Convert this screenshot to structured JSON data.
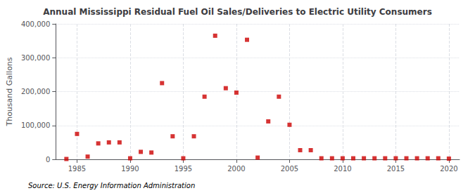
{
  "chart_data": {
    "type": "scatter",
    "title": "Annual Mississippi Residual Fuel Oil Sales/Deliveries to Electric Utility Consumers",
    "ylabel": "Thousand Gallons",
    "annotations": [
      "Source: U.S. Energy Information Administration"
    ],
    "x": [
      1984,
      1985,
      1986,
      1987,
      1988,
      1989,
      1990,
      1991,
      1992,
      1993,
      1994,
      1995,
      1996,
      1997,
      1998,
      1999,
      2000,
      2001,
      2002,
      2003,
      2004,
      2005,
      2006,
      2007,
      2008,
      2009,
      2010,
      2011,
      2012,
      2013,
      2014,
      2015,
      2016,
      2017,
      2018,
      2019,
      2020
    ],
    "values": [
      1000,
      75000,
      8000,
      47000,
      50000,
      50000,
      3000,
      22000,
      20000,
      225000,
      68000,
      3000,
      68000,
      185000,
      365000,
      210000,
      197000,
      353000,
      5000,
      112000,
      185000,
      102000,
      27000,
      27000,
      3000,
      3000,
      3000,
      3000,
      3000,
      3000,
      3000,
      3000,
      3000,
      3000,
      3000,
      3000,
      2000
    ],
    "color": "#cc0000",
    "marker": "square",
    "xlim": [
      1983,
      2021
    ],
    "ylim": [
      0,
      400000
    ],
    "xticks": [
      1985,
      1990,
      1995,
      2000,
      2005,
      2010,
      2015,
      2020
    ],
    "yticks": [
      0,
      {
        "value": 100000,
        "label": "100,000"
      },
      {
        "value": 200000,
        "label": "200,000"
      },
      {
        "value": 300000,
        "label": "300,000"
      },
      {
        "value": 400000,
        "label": "400,000"
      }
    ],
    "grid": true
  }
}
